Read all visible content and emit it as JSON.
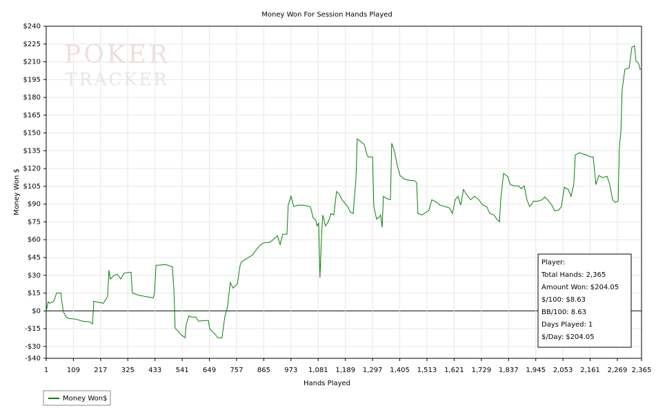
{
  "chart_data": {
    "type": "line",
    "title": "Money Won For Session Hands Played",
    "x_label": "Hands Played",
    "y_label": "Money Won $",
    "watermark": [
      "POKER",
      "TRACKER"
    ],
    "grid": true,
    "x": [
      1,
      9,
      15,
      31,
      42,
      59,
      64,
      69,
      80,
      91,
      119,
      146,
      174,
      185,
      190,
      201,
      228,
      245,
      250,
      256,
      269,
      283,
      297,
      311,
      338,
      343,
      365,
      393,
      426,
      431,
      437,
      475,
      502,
      508,
      513,
      524,
      535,
      552,
      557,
      568,
      579,
      595,
      606,
      628,
      645,
      650,
      672,
      683,
      699,
      710,
      721,
      732,
      743,
      760,
      771,
      776,
      798,
      820,
      836,
      853,
      869,
      886,
      902,
      919,
      930,
      940,
      957,
      962,
      973,
      984,
      1001,
      1023,
      1050,
      1061,
      1072,
      1077,
      1083,
      1088,
      1094,
      1099,
      1110,
      1121,
      1132,
      1143,
      1154,
      1165,
      1176,
      1187,
      1198,
      1209,
      1220,
      1231,
      1236,
      1247,
      1264,
      1275,
      1280,
      1297,
      1302,
      1313,
      1324,
      1329,
      1335,
      1340,
      1351,
      1368,
      1373,
      1384,
      1395,
      1406,
      1423,
      1444,
      1461,
      1472,
      1477,
      1494,
      1510,
      1521,
      1532,
      1549,
      1565,
      1587,
      1603,
      1614,
      1625,
      1636,
      1647,
      1658,
      1669,
      1686,
      1702,
      1719,
      1735,
      1751,
      1762,
      1779,
      1790,
      1801,
      1806,
      1817,
      1833,
      1844,
      1861,
      1877,
      1888,
      1899,
      1910,
      1921,
      1937,
      1954,
      1970,
      1981,
      1992,
      2009,
      2020,
      2036,
      2047,
      2058,
      2074,
      2085,
      2096,
      2102,
      2118,
      2146,
      2162,
      2173,
      2184,
      2195,
      2211,
      2228,
      2239,
      2250,
      2261,
      2272,
      2277,
      2283,
      2288,
      2299,
      2316,
      2327,
      2337,
      2343,
      2354,
      2359,
      2365
    ],
    "series": [
      {
        "name": "Money Won$",
        "color": "#008000",
        "values": [
          0,
          7.6,
          6.4,
          8.1,
          15.1,
          15.1,
          6.4,
          -0.6,
          -5.2,
          -6.4,
          -7,
          -8.7,
          -9.3,
          -11,
          8.1,
          7.6,
          6.4,
          12.2,
          34.3,
          26.8,
          29.7,
          30.9,
          26.8,
          32,
          32.6,
          15.1,
          13.4,
          12.2,
          11,
          15.1,
          38.4,
          39,
          37.2,
          18,
          -14.6,
          -16.9,
          -19.8,
          -22.7,
          -11,
          -4.1,
          -5.2,
          -5.2,
          -8.7,
          -8.1,
          -8.1,
          -15.1,
          -19.8,
          -22.7,
          -22.7,
          -5.2,
          3.5,
          23.9,
          19.2,
          22.7,
          38.4,
          41.3,
          44.2,
          47.1,
          51.8,
          55.9,
          57.6,
          57.6,
          59.9,
          63.4,
          55.9,
          64.6,
          64.6,
          89.1,
          96.6,
          87.9,
          89.1,
          89.1,
          87.9,
          78.6,
          76.3,
          71.6,
          73.9,
          28,
          61.7,
          80.9,
          71.6,
          75.1,
          82.1,
          80.9,
          100.7,
          98.4,
          93.7,
          90.8,
          87.9,
          83.2,
          82.1,
          111.2,
          144.9,
          143.2,
          140.3,
          131.5,
          129.8,
          129.8,
          87.9,
          77.4,
          79.2,
          80.9,
          70.4,
          96.6,
          94.9,
          93.7,
          141.4,
          134.5,
          122.8,
          114.1,
          111.2,
          110,
          110,
          108.3,
          82.1,
          80.9,
          83.2,
          84.9,
          93.7,
          91.9,
          89.1,
          87.9,
          86.7,
          82.1,
          93.7,
          96.6,
          89.1,
          102.4,
          98.4,
          93.7,
          96.6,
          93.7,
          89.1,
          87.9,
          82.1,
          80.9,
          77.4,
          75.1,
          93.7,
          115.8,
          113.5,
          106.5,
          105.4,
          105.4,
          103,
          105.4,
          93.7,
          87.9,
          92.5,
          92.5,
          93.7,
          96,
          93.7,
          89.1,
          84.4,
          84.9,
          87.9,
          104.2,
          102.4,
          96.6,
          106.5,
          131.5,
          133.3,
          131.5,
          129.8,
          129.8,
          106.5,
          114.1,
          112.3,
          113.5,
          106.5,
          93.7,
          91.4,
          92.5,
          137.4,
          150.8,
          186.3,
          203.7,
          204.9,
          222.4,
          223.5,
          210.7,
          208.4,
          203.7,
          204.05
        ]
      }
    ],
    "xlim": [
      1,
      2365
    ],
    "xticks": [
      1,
      109,
      217,
      325,
      433,
      541,
      649,
      757,
      865,
      973,
      {
        "value": 1081,
        "label": "1,081"
      },
      {
        "value": 1189,
        "label": "1,189"
      },
      {
        "value": 1297,
        "label": "1,297"
      },
      {
        "value": 1405,
        "label": "1,405"
      },
      {
        "value": 1513,
        "label": "1,513"
      },
      {
        "value": 1621,
        "label": "1,621"
      },
      {
        "value": 1729,
        "label": "1,729"
      },
      {
        "value": 1837,
        "label": "1,837"
      },
      {
        "value": 1945,
        "label": "1,945"
      },
      {
        "value": 2053,
        "label": "2,053"
      },
      {
        "value": 2161,
        "label": "2,161"
      },
      {
        "value": 2269,
        "label": "2,269"
      },
      {
        "value": 2365,
        "label": "2,365"
      }
    ],
    "ylim": [
      -40,
      240
    ],
    "yticks": [
      {
        "value": -40,
        "label": "-$40"
      },
      {
        "value": -30,
        "label": "-$30"
      },
      {
        "value": -15,
        "label": "-$15"
      },
      {
        "value": 0,
        "label": "$0"
      },
      {
        "value": 15,
        "label": "$15"
      },
      {
        "value": 30,
        "label": "$30"
      },
      {
        "value": 45,
        "label": "$45"
      },
      {
        "value": 60,
        "label": "$60"
      },
      {
        "value": 75,
        "label": "$75"
      },
      {
        "value": 90,
        "label": "$90"
      },
      {
        "value": 105,
        "label": "$105"
      },
      {
        "value": 120,
        "label": "$120"
      },
      {
        "value": 135,
        "label": "$135"
      },
      {
        "value": 150,
        "label": "$150"
      },
      {
        "value": 165,
        "label": "$165"
      },
      {
        "value": 180,
        "label": "$180"
      },
      {
        "value": 195,
        "label": "$195"
      },
      {
        "value": 210,
        "label": "$210"
      },
      {
        "value": 225,
        "label": "$225"
      },
      {
        "value": 240,
        "label": "$240"
      }
    ],
    "stats_box": [
      "Player:",
      "Total Hands: 2,365",
      "Amount Won: $204.05",
      "$/100: $8.63",
      "BB/100: 8.63",
      "Days Played: 1",
      "$/Day: $204.05"
    ]
  }
}
